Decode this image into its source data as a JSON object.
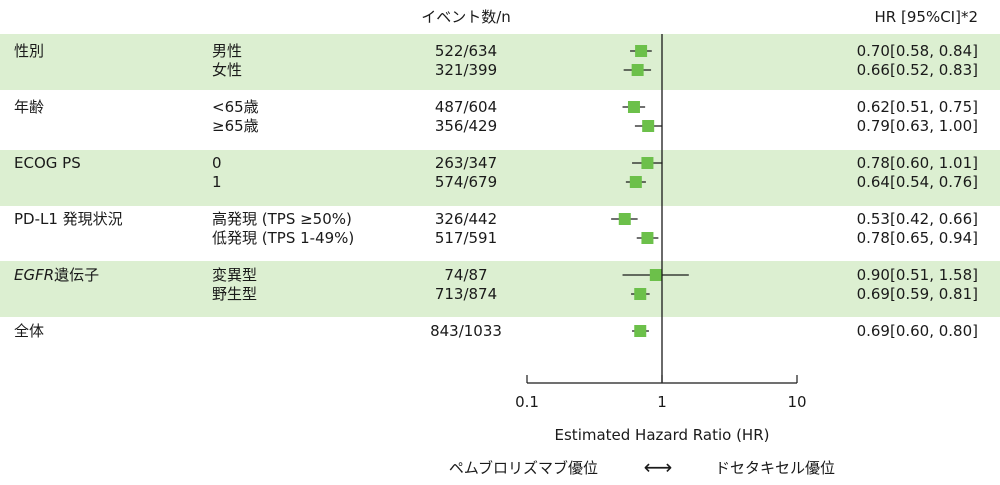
{
  "chart_data": {
    "type": "forest",
    "header_count": "イベント数/n",
    "header_hr": "HR [95%CI]*2",
    "xlabel": "Estimated Hazard Ratio (HR)",
    "x_scale": "log",
    "xlim": [
      0.1,
      10
    ],
    "xticks": [
      "0.1",
      "1",
      "10"
    ],
    "reference_line": 1,
    "favors_left": "ペムブロリズマブ優位",
    "favors_right": "ドセタキセル優位",
    "favors_arrow": "⟷",
    "marker_color": "#6cc04a",
    "band_color": "#dcefd1",
    "groups": [
      {
        "label": "性別",
        "label_italic": "",
        "shaded": true,
        "rows": [
          {
            "sub": "男性",
            "events": "522/634",
            "hr": 0.7,
            "lo": 0.58,
            "hi": 0.84,
            "hr_text": "0.70[0.58, 0.84]"
          },
          {
            "sub": "女性",
            "events": "321/399",
            "hr": 0.66,
            "lo": 0.52,
            "hi": 0.83,
            "hr_text": "0.66[0.52, 0.83]"
          }
        ]
      },
      {
        "label": "年齢",
        "label_italic": "",
        "shaded": false,
        "rows": [
          {
            "sub": "<65歳",
            "events": "487/604",
            "hr": 0.62,
            "lo": 0.51,
            "hi": 0.75,
            "hr_text": "0.62[0.51, 0.75]"
          },
          {
            "sub": "≥65歳",
            "events": "356/429",
            "hr": 0.79,
            "lo": 0.63,
            "hi": 1.0,
            "hr_text": "0.79[0.63, 1.00]"
          }
        ]
      },
      {
        "label": "ECOG PS",
        "label_italic": "",
        "shaded": true,
        "rows": [
          {
            "sub": "0",
            "events": "263/347",
            "hr": 0.78,
            "lo": 0.6,
            "hi": 1.01,
            "hr_text": "0.78[0.60, 1.01]"
          },
          {
            "sub": "1",
            "events": "574/679",
            "hr": 0.64,
            "lo": 0.54,
            "hi": 0.76,
            "hr_text": "0.64[0.54, 0.76]"
          }
        ]
      },
      {
        "label": "PD-L1 発現状況",
        "label_italic": "",
        "shaded": false,
        "rows": [
          {
            "sub": "高発現 (TPS ≥50%)",
            "events": "326/442",
            "hr": 0.53,
            "lo": 0.42,
            "hi": 0.66,
            "hr_text": "0.53[0.42, 0.66]"
          },
          {
            "sub": "低発現 (TPS 1-49%)",
            "events": "517/591",
            "hr": 0.78,
            "lo": 0.65,
            "hi": 0.94,
            "hr_text": "0.78[0.65, 0.94]"
          }
        ]
      },
      {
        "label": "遺伝子",
        "label_italic": "EGFR",
        "shaded": true,
        "rows": [
          {
            "sub": "変異型",
            "events": "74/87",
            "hr": 0.9,
            "lo": 0.51,
            "hi": 1.58,
            "hr_text": "0.90[0.51, 1.58]"
          },
          {
            "sub": "野生型",
            "events": "713/874",
            "hr": 0.69,
            "lo": 0.59,
            "hi": 0.81,
            "hr_text": "0.69[0.59, 0.81]"
          }
        ]
      },
      {
        "label": "全体",
        "label_italic": "",
        "shaded": false,
        "rows": [
          {
            "sub": "",
            "events": "843/1033",
            "hr": 0.69,
            "lo": 0.6,
            "hi": 0.8,
            "hr_text": "0.69[0.60, 0.80]"
          }
        ]
      }
    ]
  }
}
